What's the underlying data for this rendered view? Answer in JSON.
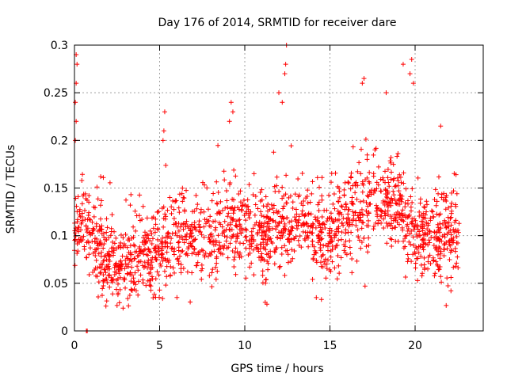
{
  "chart_data": {
    "type": "scatter",
    "title": "Day 176 of 2014, SRMTID for receiver dare",
    "xlabel": "GPS time / hours",
    "ylabel": "SRMTID / TECUs",
    "xlim": [
      0,
      24
    ],
    "ylim": [
      0,
      0.3
    ],
    "x_ticks": [
      0,
      5,
      10,
      15,
      20
    ],
    "y_ticks": [
      0,
      0.05,
      0.1,
      0.15,
      0.2,
      0.25,
      0.3
    ],
    "x_tick_labels": [
      "0",
      "5",
      "10",
      "15",
      "20"
    ],
    "y_tick_labels": [
      "0",
      "0.05",
      "0.1",
      "0.15",
      "0.2",
      "0.25",
      "0.3"
    ],
    "grid": true,
    "marker": "plus",
    "series_color": "#ff0000",
    "series": [
      {
        "name": "SRMTID",
        "x_range": [
          0,
          22.6
        ],
        "points_approx": 1800,
        "trend": [
          {
            "x": 0,
            "y": 0.1
          },
          {
            "x": 0.5,
            "y": 0.11
          },
          {
            "x": 1,
            "y": 0.1
          },
          {
            "x": 1.5,
            "y": 0.085
          },
          {
            "x": 2,
            "y": 0.075
          },
          {
            "x": 2.5,
            "y": 0.065
          },
          {
            "x": 3,
            "y": 0.068
          },
          {
            "x": 4,
            "y": 0.075
          },
          {
            "x": 5,
            "y": 0.085
          },
          {
            "x": 6,
            "y": 0.09
          },
          {
            "x": 7,
            "y": 0.09
          },
          {
            "x": 8,
            "y": 0.095
          },
          {
            "x": 9,
            "y": 0.11
          },
          {
            "x": 10,
            "y": 0.1
          },
          {
            "x": 11,
            "y": 0.095
          },
          {
            "x": 12,
            "y": 0.11
          },
          {
            "x": 13,
            "y": 0.11
          },
          {
            "x": 14,
            "y": 0.1
          },
          {
            "x": 15,
            "y": 0.1
          },
          {
            "x": 16,
            "y": 0.115
          },
          {
            "x": 17,
            "y": 0.125
          },
          {
            "x": 18,
            "y": 0.14
          },
          {
            "x": 19,
            "y": 0.13
          },
          {
            "x": 20,
            "y": 0.1
          },
          {
            "x": 21,
            "y": 0.095
          },
          {
            "x": 22,
            "y": 0.1
          },
          {
            "x": 22.6,
            "y": 0.1
          }
        ],
        "notable_points": [
          {
            "x": 0.1,
            "y": 0.29
          },
          {
            "x": 0.15,
            "y": 0.28
          },
          {
            "x": 0.1,
            "y": 0.26
          },
          {
            "x": 0.05,
            "y": 0.24
          },
          {
            "x": 0.1,
            "y": 0.22
          },
          {
            "x": 0.05,
            "y": 0.2
          },
          {
            "x": 0.7,
            "y": 0.0
          },
          {
            "x": 0.75,
            "y": 0.0
          },
          {
            "x": 5.3,
            "y": 0.23
          },
          {
            "x": 5.2,
            "y": 0.2
          },
          {
            "x": 5.25,
            "y": 0.21
          },
          {
            "x": 9.1,
            "y": 0.22
          },
          {
            "x": 9.3,
            "y": 0.23
          },
          {
            "x": 9.2,
            "y": 0.24
          },
          {
            "x": 11.2,
            "y": 0.03
          },
          {
            "x": 11.3,
            "y": 0.028
          },
          {
            "x": 12.2,
            "y": 0.24
          },
          {
            "x": 12.0,
            "y": 0.25
          },
          {
            "x": 12.4,
            "y": 0.28
          },
          {
            "x": 12.35,
            "y": 0.27
          },
          {
            "x": 12.45,
            "y": 0.3
          },
          {
            "x": 16.9,
            "y": 0.26
          },
          {
            "x": 17.0,
            "y": 0.265
          },
          {
            "x": 18.3,
            "y": 0.25
          },
          {
            "x": 19.3,
            "y": 0.28
          },
          {
            "x": 19.7,
            "y": 0.27
          },
          {
            "x": 19.8,
            "y": 0.285
          },
          {
            "x": 19.9,
            "y": 0.26
          },
          {
            "x": 21.5,
            "y": 0.215
          },
          {
            "x": 14.2,
            "y": 0.035
          },
          {
            "x": 14.5,
            "y": 0.033
          }
        ]
      }
    ]
  }
}
